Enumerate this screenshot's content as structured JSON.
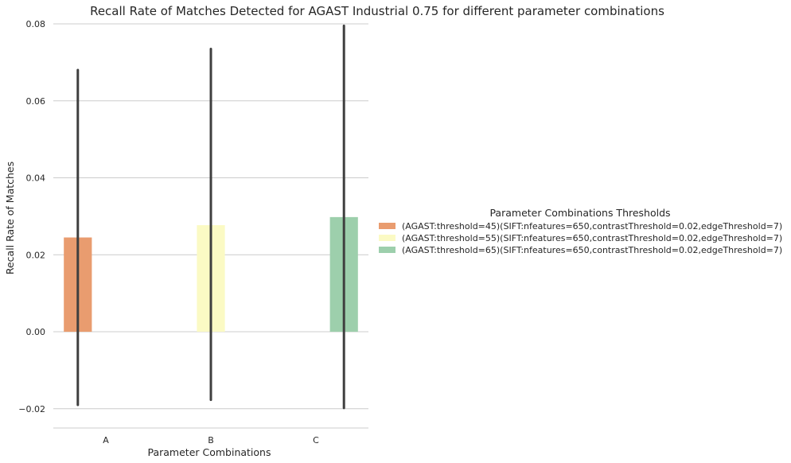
{
  "chart_data": {
    "type": "bar",
    "title": "Recall Rate of Matches Detected for AGAST Industrial 0.75 for different parameter combinations",
    "xlabel": "Parameter Combinations",
    "ylabel": "Recall Rate of Matches",
    "categories": [
      "A",
      "B",
      "C"
    ],
    "ylim": [
      -0.025,
      0.08
    ],
    "yticks": [
      -0.02,
      0.0,
      0.02,
      0.04,
      0.06,
      0.08
    ],
    "ytick_labels": [
      "−0.02",
      "0.00",
      "0.02",
      "0.04",
      "0.06",
      "0.08"
    ],
    "grid": true,
    "legend": {
      "title": "Parameter Combinations Thresholds",
      "placement": "center-right"
    },
    "series": [
      {
        "name": "(AGAST:threshold=45)(SIFT:nfeatures=650,contrastThreshold=0.02,edgeThreshold=7)",
        "color": "#e99c6f",
        "values": [
          0.0245,
          0,
          0
        ],
        "err_low": [
          -0.019,
          null,
          null
        ],
        "err_high": [
          0.068,
          null,
          null
        ]
      },
      {
        "name": "(AGAST:threshold=55)(SIFT:nfeatures=650,contrastThreshold=0.02,edgeThreshold=7)",
        "color": "#fbfac4",
        "values": [
          0,
          0.0277,
          0
        ],
        "err_low": [
          null,
          -0.0177,
          null
        ],
        "err_high": [
          null,
          0.0735,
          null
        ]
      },
      {
        "name": "(AGAST:threshold=65)(SIFT:nfeatures=650,contrastThreshold=0.02,edgeThreshold=7)",
        "color": "#9dcfac",
        "values": [
          0,
          0,
          0.0298
        ],
        "err_low": [
          null,
          null,
          -0.0198
        ],
        "err_high": [
          null,
          null,
          0.0795
        ]
      }
    ],
    "error_bar_color": "#3f3f3f"
  }
}
